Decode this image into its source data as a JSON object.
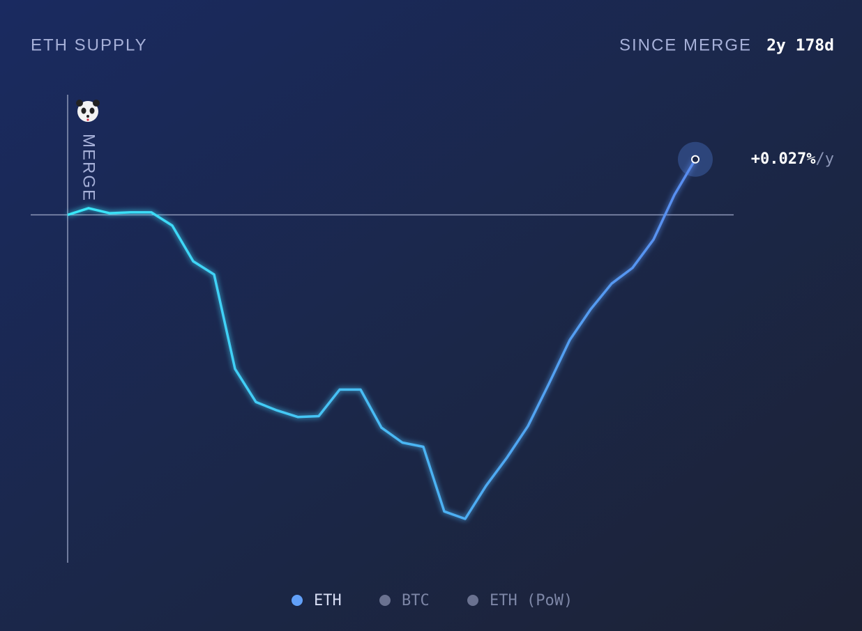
{
  "chart_data": {
    "type": "line",
    "title": "ETH SUPPLY",
    "period_label": "SINCE MERGE",
    "period_value": "2y 178d",
    "marker_label": "MERGE",
    "rate_label": "+0.027%",
    "rate_unit": "/y",
    "series": [
      {
        "name": "ETH",
        "color": "#62a0f8",
        "gradient": [
          "#38e8f8",
          "#5a8cf0"
        ],
        "values": [
          0,
          0.008,
          0.002,
          0.003,
          0.003,
          -0.013,
          -0.056,
          -0.072,
          -0.186,
          -0.226,
          -0.236,
          -0.244,
          -0.243,
          -0.211,
          -0.211,
          -0.257,
          -0.275,
          -0.28,
          -0.358,
          -0.367,
          -0.327,
          -0.293,
          -0.255,
          -0.204,
          -0.151,
          -0.114,
          -0.083,
          -0.064,
          -0.03,
          0.024,
          0.067
        ]
      }
    ],
    "inactive_series": [
      {
        "name": "BTC",
        "color": "#6a7290"
      },
      {
        "name": "ETH (PoW)",
        "color": "#6a7290"
      }
    ],
    "ylim": [
      -0.42,
      0.145
    ]
  }
}
